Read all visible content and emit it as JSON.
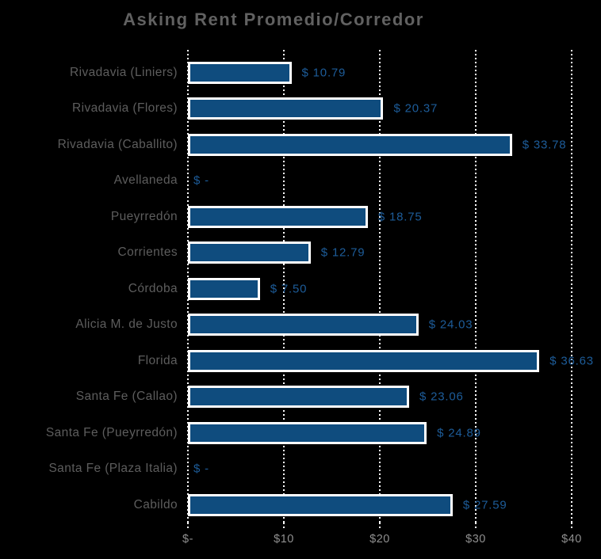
{
  "chart_data": {
    "type": "bar",
    "orientation": "horizontal",
    "title": "Asking Rent Promedio/Corredor",
    "categories": [
      "Rivadavia (Liniers)",
      "Rivadavia (Flores)",
      "Rivadavia (Caballito)",
      "Avellaneda",
      "Pueyrredón",
      "Corrientes",
      "Córdoba",
      "Alicia M. de Justo",
      "Florida",
      "Santa Fe (Callao)",
      "Santa Fe (Pueyrredón)",
      "Santa Fe (Plaza Italia)",
      "Cabildo"
    ],
    "values": [
      10.79,
      20.37,
      33.78,
      0,
      18.75,
      12.79,
      7.5,
      24.03,
      36.63,
      23.06,
      24.89,
      0,
      27.59
    ],
    "value_labels": [
      "$ 10.79",
      "$ 20.37",
      "$ 33.78",
      "$ -",
      "$ 18.75",
      "$ 12.79",
      "$ 7.50",
      "$ 24.03",
      "$ 36.63",
      "$ 23.06",
      "$ 24.89",
      "$ -",
      "$ 27.59"
    ],
    "x_ticks": [
      "$-",
      "$10",
      "$20",
      "$30",
      "$40"
    ],
    "xlim": [
      0,
      40
    ],
    "grid": "vertical-dotted",
    "legend": "none",
    "colors": {
      "background": "#000000",
      "bar_fill": "#0F4C7E",
      "bar_border": "#FFFFFF",
      "value_text": "#1D5C99",
      "category_text": "#5D5D5D",
      "axis_text": "#8F8F8F",
      "title_text": "#616161",
      "gridline": "#FFFFFF"
    }
  }
}
